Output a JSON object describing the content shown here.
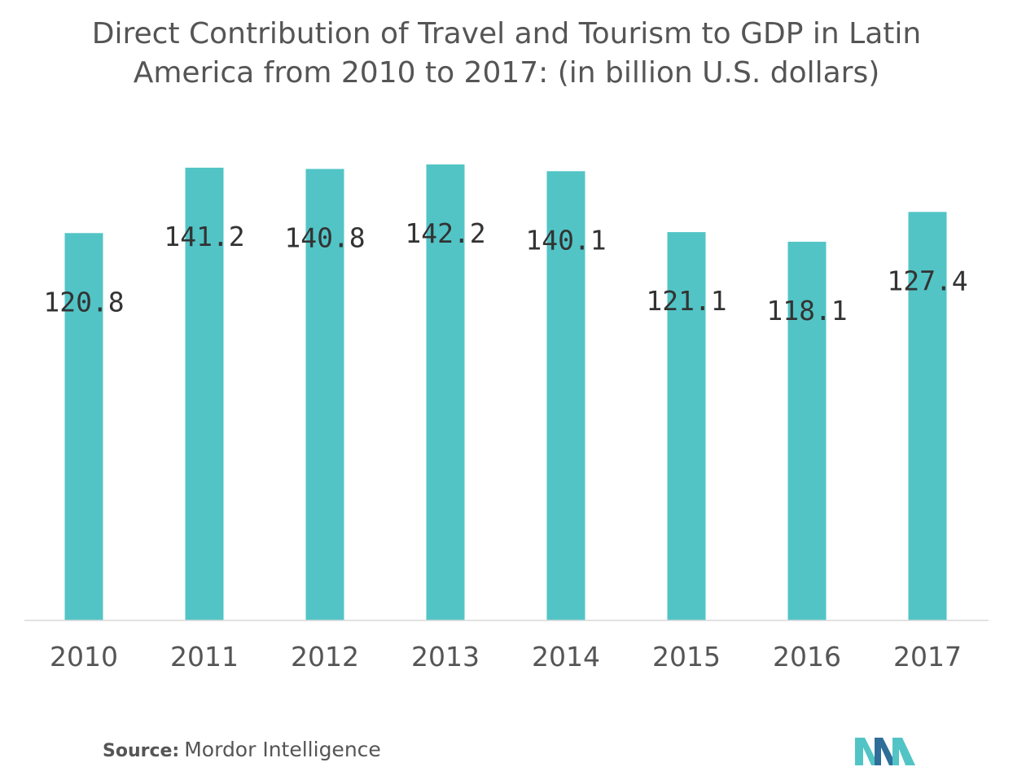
{
  "chart_data": {
    "type": "bar",
    "title": "Direct Contribution of Travel and Tourism to GDP in Latin America from 2010 to 2017: (in billion U.S. dollars)",
    "categories": [
      "2010",
      "2011",
      "2012",
      "2013",
      "2014",
      "2015",
      "2016",
      "2017"
    ],
    "values": [
      120.8,
      141.2,
      140.8,
      142.2,
      140.1,
      121.1,
      118.1,
      127.4
    ],
    "data_labels": [
      "120.8",
      "141.2",
      "140.8",
      "142.2",
      "140.1",
      "121.1",
      "118.1",
      "127.4"
    ],
    "xlabel": "",
    "ylabel": "",
    "ylim": [
      0,
      150
    ],
    "grid": false,
    "legend": "none",
    "bar_color": "#52c4c6"
  },
  "source": {
    "label": "Source:",
    "text": "Mordor Intelligence"
  },
  "logo": {
    "icon": "mordor-intelligence-logo-icon",
    "color_dark": "#2f6e99",
    "color_light": "#52c4c6"
  }
}
